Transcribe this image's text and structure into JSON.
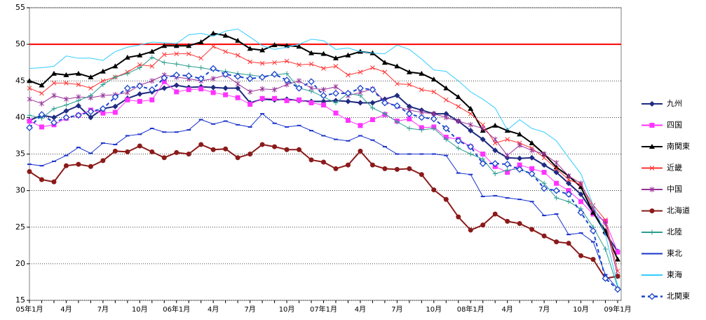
{
  "chart_data": {
    "type": "line",
    "categories": [
      "05年1月",
      null,
      null,
      "4月",
      null,
      null,
      "7月",
      null,
      null,
      "10月",
      null,
      null,
      "06年1月",
      null,
      null,
      "4月",
      null,
      null,
      "7月",
      null,
      null,
      "10月",
      null,
      null,
      "07年1月",
      null,
      null,
      "4月",
      null,
      null,
      "7月",
      null,
      null,
      "10月",
      null,
      null,
      "08年1月",
      null,
      null,
      "4月",
      null,
      null,
      "7月",
      null,
      null,
      "10月",
      null,
      null,
      "09年1月"
    ],
    "ylim": [
      15,
      55
    ],
    "yticks": [
      15,
      20,
      25,
      30,
      35,
      40,
      45,
      50,
      55
    ],
    "grid": true,
    "reference_line": {
      "value": 50,
      "color": "#ff0000"
    },
    "legend": "right",
    "series": [
      {
        "name": "九州",
        "color": "#1f2a80",
        "marker": "diamond",
        "values": [
          39.6,
          40.3,
          40.0,
          40.9,
          41.6,
          40.0,
          41.2,
          41.5,
          42.6,
          43.2,
          43.5,
          44.0,
          44.4,
          44.1,
          44.2,
          44.1,
          44.0,
          44.0,
          42.0,
          42.5,
          42.4,
          42.5,
          42.3,
          42.2,
          42.2,
          42.3,
          42.2,
          42.0,
          42.0,
          42.5,
          43.0,
          41.5,
          41.0,
          40.5,
          40.5,
          39.5,
          38.2,
          37.0,
          35.5,
          34.5,
          34.4,
          34.5,
          33.5,
          32.5,
          31.0,
          29.5,
          27.0,
          24.2,
          21.7
        ]
      },
      {
        "name": "四国",
        "color": "#ff33ff",
        "marker": "square",
        "values": [
          39.5,
          38.7,
          39.0,
          39.9,
          40.3,
          41.0,
          40.6,
          40.7,
          42.4,
          42.2,
          42.4,
          44.9,
          43.5,
          43.8,
          43.9,
          43.4,
          43.1,
          42.7,
          41.8,
          42.6,
          42.6,
          42.3,
          42.4,
          42.0,
          41.7,
          40.6,
          39.6,
          38.9,
          39.7,
          40.4,
          39.5,
          39.8,
          38.6,
          38.7,
          37.3,
          37.0,
          36.0,
          35.0,
          33.3,
          32.5,
          33.5,
          33.0,
          32.5,
          31.0,
          30.0,
          28.5,
          26.8,
          25.8,
          21.6
        ]
      },
      {
        "name": "南関東",
        "color": "#000000",
        "marker": "triangle",
        "values": [
          45.0,
          44.4,
          46.0,
          45.8,
          46.0,
          45.5,
          46.3,
          47.0,
          48.2,
          48.5,
          49.0,
          49.8,
          49.8,
          49.8,
          50.3,
          51.5,
          51.2,
          50.5,
          49.4,
          49.2,
          49.9,
          49.8,
          49.7,
          48.8,
          48.7,
          48.1,
          48.5,
          49.0,
          48.8,
          47.5,
          47.0,
          46.2,
          46.0,
          45.2,
          44.0,
          42.8,
          41.2,
          38.2,
          38.9,
          38.2,
          37.7,
          36.5,
          35.0,
          33.2,
          32.0,
          30.5,
          27.0,
          24.5,
          20.6
        ]
      },
      {
        "name": "近畿",
        "color": "#ff3333",
        "marker": "x",
        "values": [
          44.0,
          43.3,
          44.7,
          44.7,
          44.5,
          44.0,
          45.0,
          45.5,
          46.2,
          47.2,
          47.0,
          48.6,
          48.7,
          48.7,
          48.1,
          49.7,
          49.0,
          48.5,
          47.6,
          47.4,
          47.5,
          47.7,
          47.2,
          47.3,
          46.7,
          47.0,
          45.8,
          46.2,
          46.8,
          46.2,
          44.6,
          44.5,
          43.8,
          43.5,
          42.4,
          41.5,
          40.5,
          39.0,
          36.5,
          37.0,
          36.5,
          35.8,
          34.5,
          33.0,
          31.5,
          30.8,
          28.0,
          26.0,
          19.0
        ]
      },
      {
        "name": "中国",
        "color": "#993399",
        "marker": "star",
        "values": [
          42.5,
          41.9,
          43.0,
          42.5,
          42.8,
          42.7,
          43.0,
          43.1,
          43.4,
          44.4,
          45.0,
          45.8,
          45.5,
          45.3,
          45.0,
          45.3,
          45.8,
          44.6,
          43.5,
          43.9,
          43.8,
          44.5,
          45.0,
          44.0,
          43.8,
          44.2,
          43.0,
          43.4,
          43.9,
          42.2,
          41.5,
          41.0,
          40.7,
          40.5,
          40.0,
          39.5,
          39.0,
          38.5,
          37.0,
          34.8,
          36.2,
          35.5,
          35.0,
          33.8,
          32.0,
          31.0,
          27.5,
          25.5,
          18.3
        ]
      },
      {
        "name": "北海道",
        "color": "#8b1a1a",
        "marker": "circle",
        "values": [
          32.6,
          31.5,
          31.2,
          33.4,
          33.6,
          33.3,
          34.1,
          35.4,
          35.3,
          36.1,
          35.3,
          34.5,
          35.2,
          35.0,
          36.3,
          35.6,
          35.7,
          34.5,
          35.0,
          36.3,
          36.0,
          35.6,
          35.6,
          34.2,
          33.9,
          33.0,
          33.5,
          35.4,
          33.5,
          33.0,
          32.9,
          33.0,
          32.2,
          30.1,
          28.8,
          26.4,
          24.6,
          25.3,
          26.8,
          25.8,
          25.5,
          24.7,
          23.8,
          23.0,
          22.8,
          21.1,
          20.6,
          18.0,
          18.3
        ]
      },
      {
        "name": "北陸",
        "color": "#2a9d8f",
        "marker": "plus",
        "values": [
          40.3,
          39.9,
          41.2,
          41.7,
          42.3,
          43.0,
          44.5,
          45.5,
          46.0,
          46.8,
          48.2,
          47.5,
          47.3,
          47.0,
          46.8,
          46.5,
          46.3,
          46.0,
          45.8,
          45.6,
          45.8,
          46.0,
          44.0,
          43.6,
          42.8,
          42.0,
          43.3,
          43.0,
          41.3,
          40.5,
          39.4,
          38.5,
          38.3,
          38.5,
          37.0,
          35.8,
          35.0,
          34.3,
          32.3,
          32.8,
          33.0,
          32.2,
          31.0,
          29.0,
          28.5,
          27.5,
          25.0,
          22.0,
          16.8
        ]
      },
      {
        "name": "東北",
        "color": "#1a33cc",
        "marker": "dash",
        "values": [
          33.6,
          33.4,
          34.0,
          34.8,
          35.9,
          35.1,
          36.5,
          36.3,
          37.5,
          37.7,
          38.5,
          38.0,
          38.0,
          38.3,
          39.7,
          39.1,
          39.5,
          39.0,
          38.7,
          40.5,
          39.2,
          38.7,
          38.9,
          38.2,
          37.5,
          37.0,
          36.8,
          37.5,
          36.9,
          36.0,
          35.0,
          35.0,
          35.0,
          35.0,
          34.8,
          32.4,
          32.2,
          29.2,
          29.3,
          29.0,
          28.8,
          28.5,
          26.6,
          26.8,
          24.0,
          24.2,
          23.0,
          18.5,
          16.6
        ]
      },
      {
        "name": "東海",
        "color": "#33ccff",
        "marker": "none",
        "values": [
          46.7,
          46.8,
          47.0,
          48.4,
          48.1,
          48.1,
          47.8,
          49.0,
          49.6,
          49.9,
          50.3,
          50.2,
          50.1,
          51.3,
          51.5,
          51.1,
          51.8,
          52.1,
          51.0,
          49.8,
          49.3,
          49.6,
          50.0,
          50.7,
          50.5,
          49.3,
          49.5,
          49.0,
          48.8,
          48.7,
          49.9,
          49.3,
          48.0,
          46.5,
          46.3,
          45.0,
          43.5,
          42.5,
          41.3,
          38.3,
          39.7,
          38.5,
          38.0,
          36.8,
          34.5,
          32.3,
          28.0,
          24.0,
          17.0
        ]
      },
      {
        "name": "北関東",
        "color": "#1a44cc",
        "marker": "diamond-open",
        "dashed": true,
        "values": [
          38.6,
          40.4,
          39.3,
          40.0,
          40.3,
          40.8,
          41.2,
          42.8,
          44.0,
          44.3,
          43.8,
          45.4,
          45.8,
          45.7,
          45.3,
          46.7,
          45.9,
          45.6,
          45.3,
          45.5,
          45.9,
          45.1,
          44.0,
          44.9,
          43.0,
          43.3,
          43.3,
          44.0,
          43.8,
          42.0,
          41.6,
          40.5,
          40.0,
          39.8,
          38.5,
          36.8,
          36.0,
          33.7,
          33.7,
          33.6,
          32.9,
          32.3,
          30.3,
          30.0,
          29.5,
          27.0,
          24.5,
          18.0,
          16.5
        ]
      }
    ]
  }
}
